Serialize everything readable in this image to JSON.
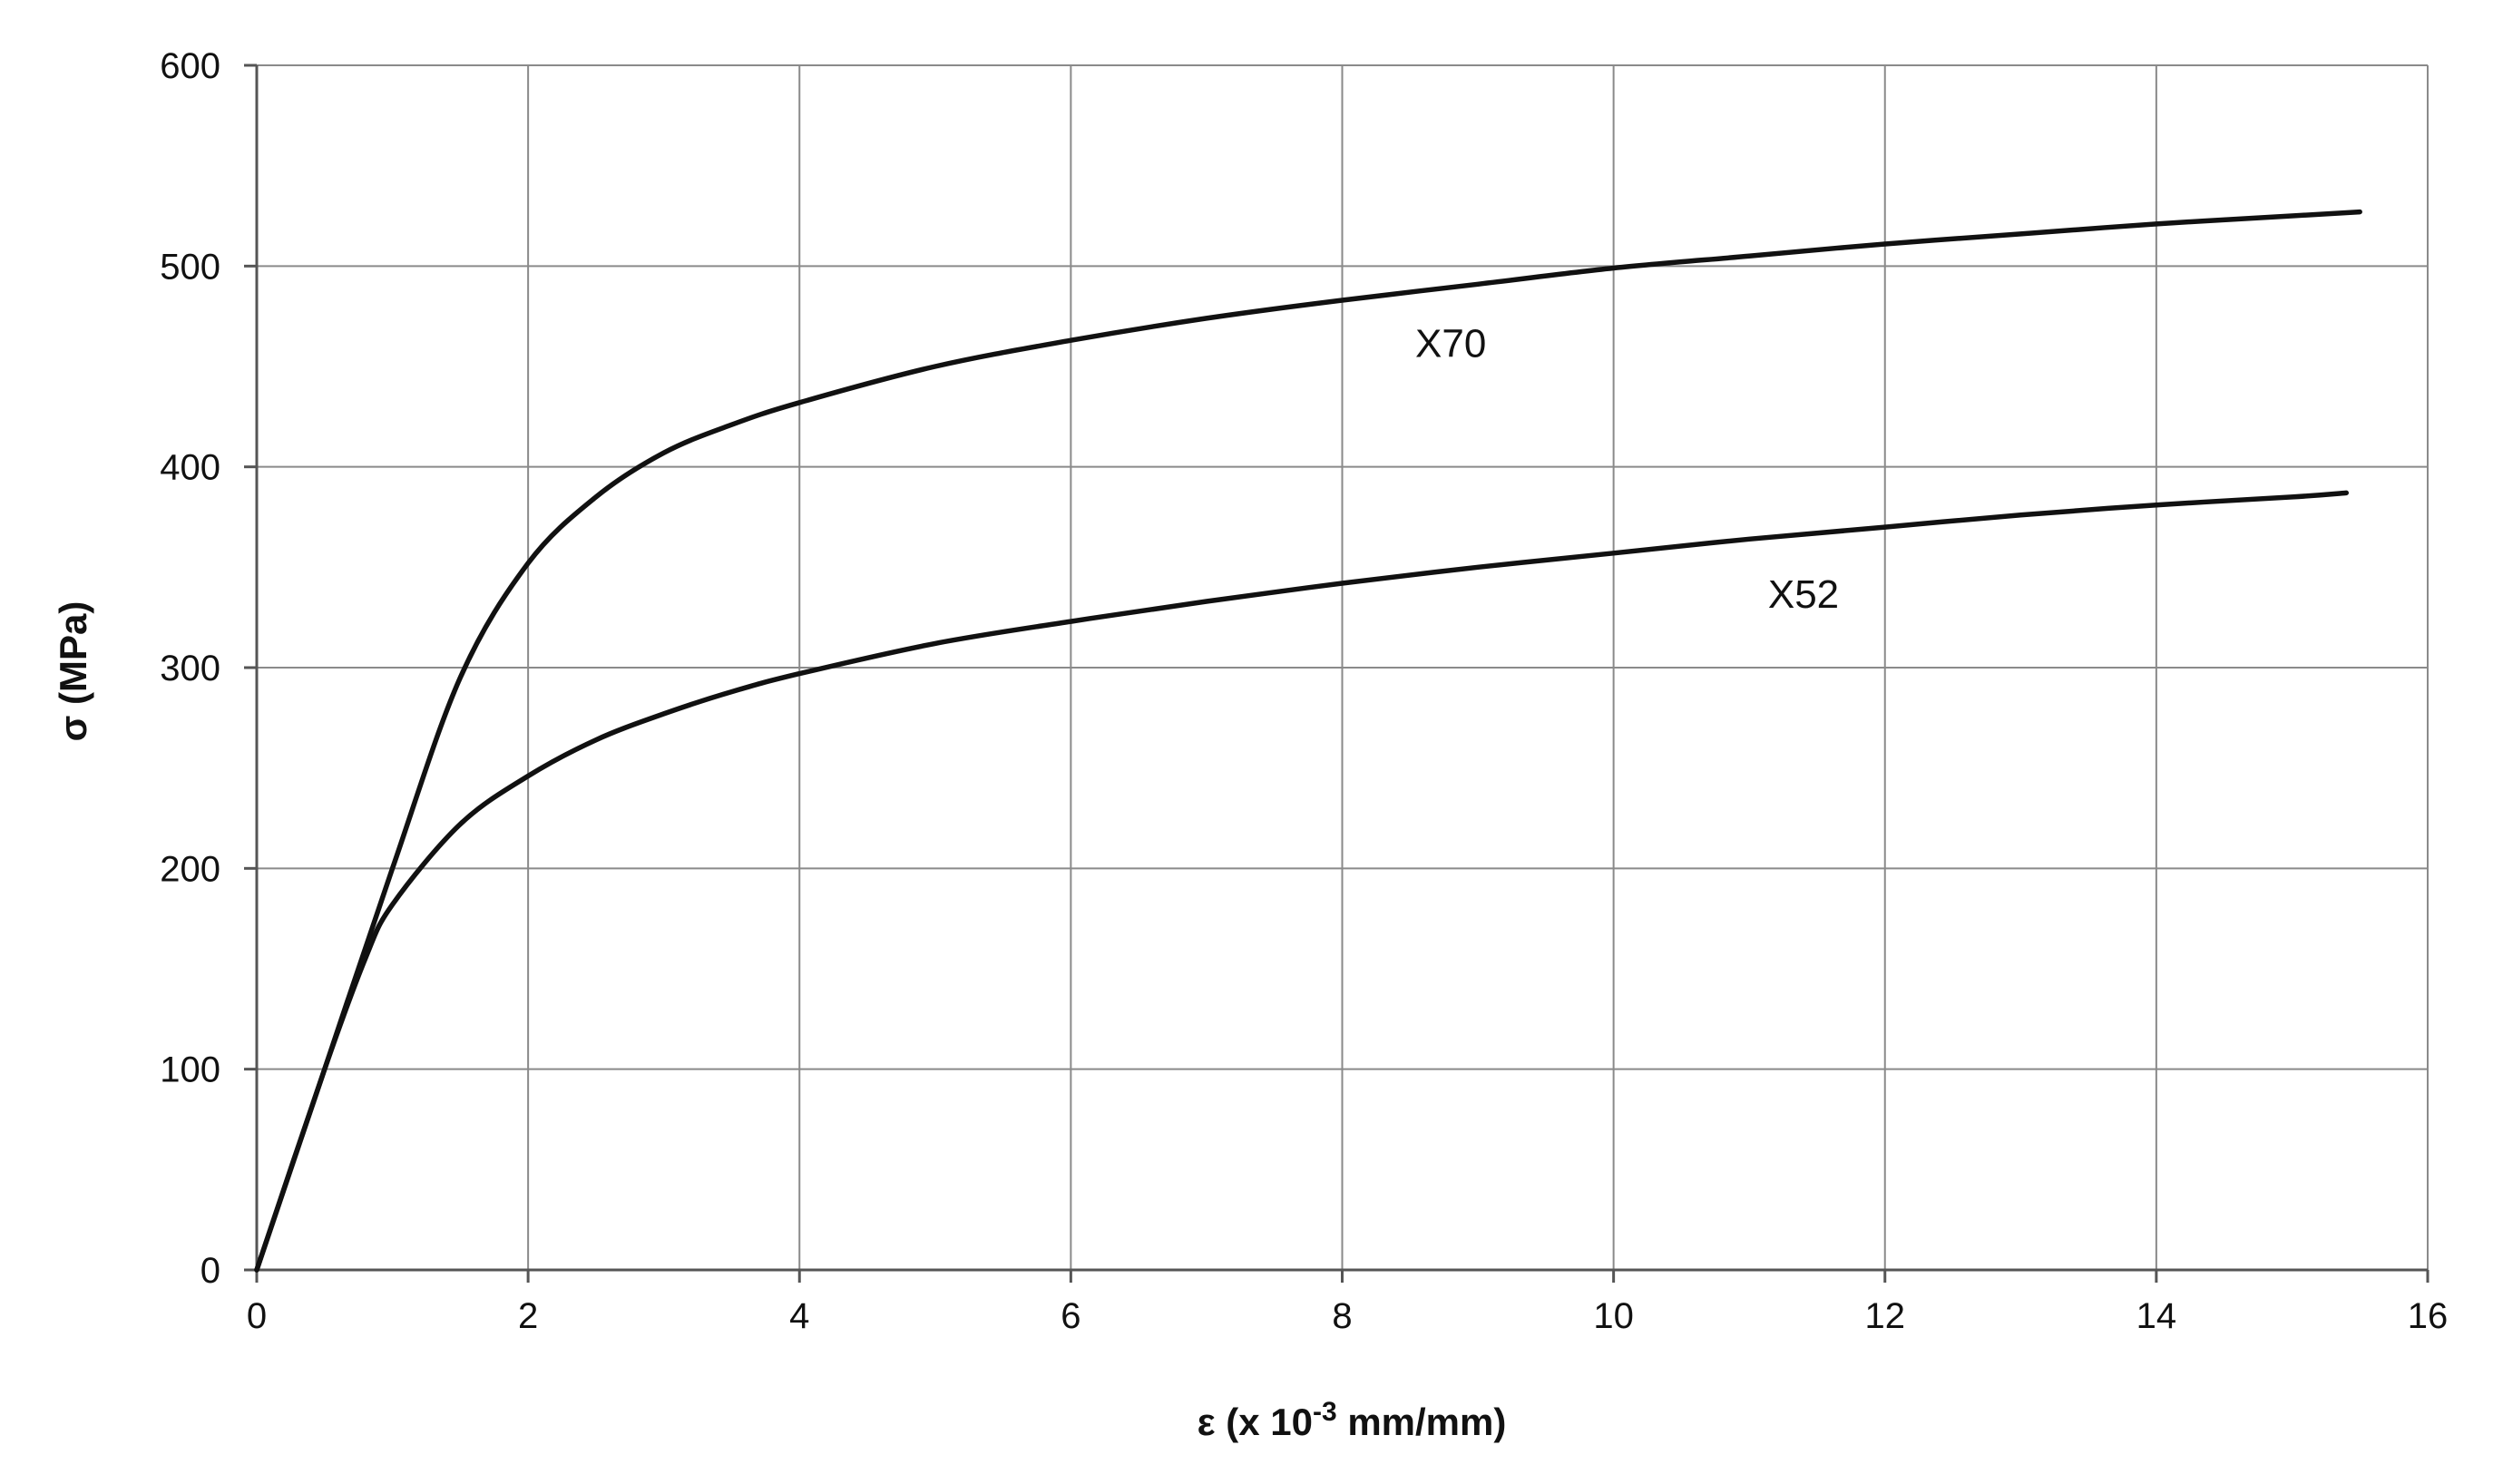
{
  "chart_data": {
    "type": "line",
    "title": "",
    "xlabel": {
      "main": "ε (x 10",
      "sup": "-3",
      "tail": " mm/mm)"
    },
    "ylabel": "σ (MPa)",
    "xlim": [
      0,
      16
    ],
    "ylim": [
      0,
      600
    ],
    "xticks": [
      "0",
      "2",
      "4",
      "6",
      "8",
      "10",
      "12",
      "14",
      "16"
    ],
    "yticks": [
      "0",
      "100",
      "200",
      "300",
      "400",
      "500",
      "600"
    ],
    "grid": true,
    "legend": "none",
    "series": [
      {
        "name": "X70",
        "label_at": [
          8.8,
          462
        ],
        "x": [
          0,
          0.5,
          1.0,
          1.5,
          2.0,
          2.5,
          3.0,
          3.5,
          4.0,
          5.0,
          6.0,
          7.0,
          8.0,
          9.0,
          10.0,
          11.0,
          12.0,
          13.0,
          14.0,
          15.0,
          15.5
        ],
        "y": [
          0,
          100,
          200,
          295,
          352,
          385,
          407,
          421,
          432,
          450,
          463,
          474,
          483,
          491,
          499,
          505,
          511,
          516,
          521,
          525,
          527
        ]
      },
      {
        "name": "X52",
        "label_at": [
          11.4,
          337
        ],
        "x": [
          0,
          0.5,
          0.8,
          1.0,
          1.5,
          2.0,
          2.5,
          3.0,
          3.5,
          4.0,
          5.0,
          6.0,
          7.0,
          8.0,
          9.0,
          10.0,
          11.0,
          12.0,
          13.0,
          14.0,
          15.0,
          15.4
        ],
        "y": [
          0,
          100,
          155,
          182,
          222,
          246,
          264,
          277,
          288,
          297,
          312,
          323,
          333,
          342,
          350,
          357,
          364,
          370,
          376,
          381,
          385,
          387
        ]
      }
    ]
  }
}
